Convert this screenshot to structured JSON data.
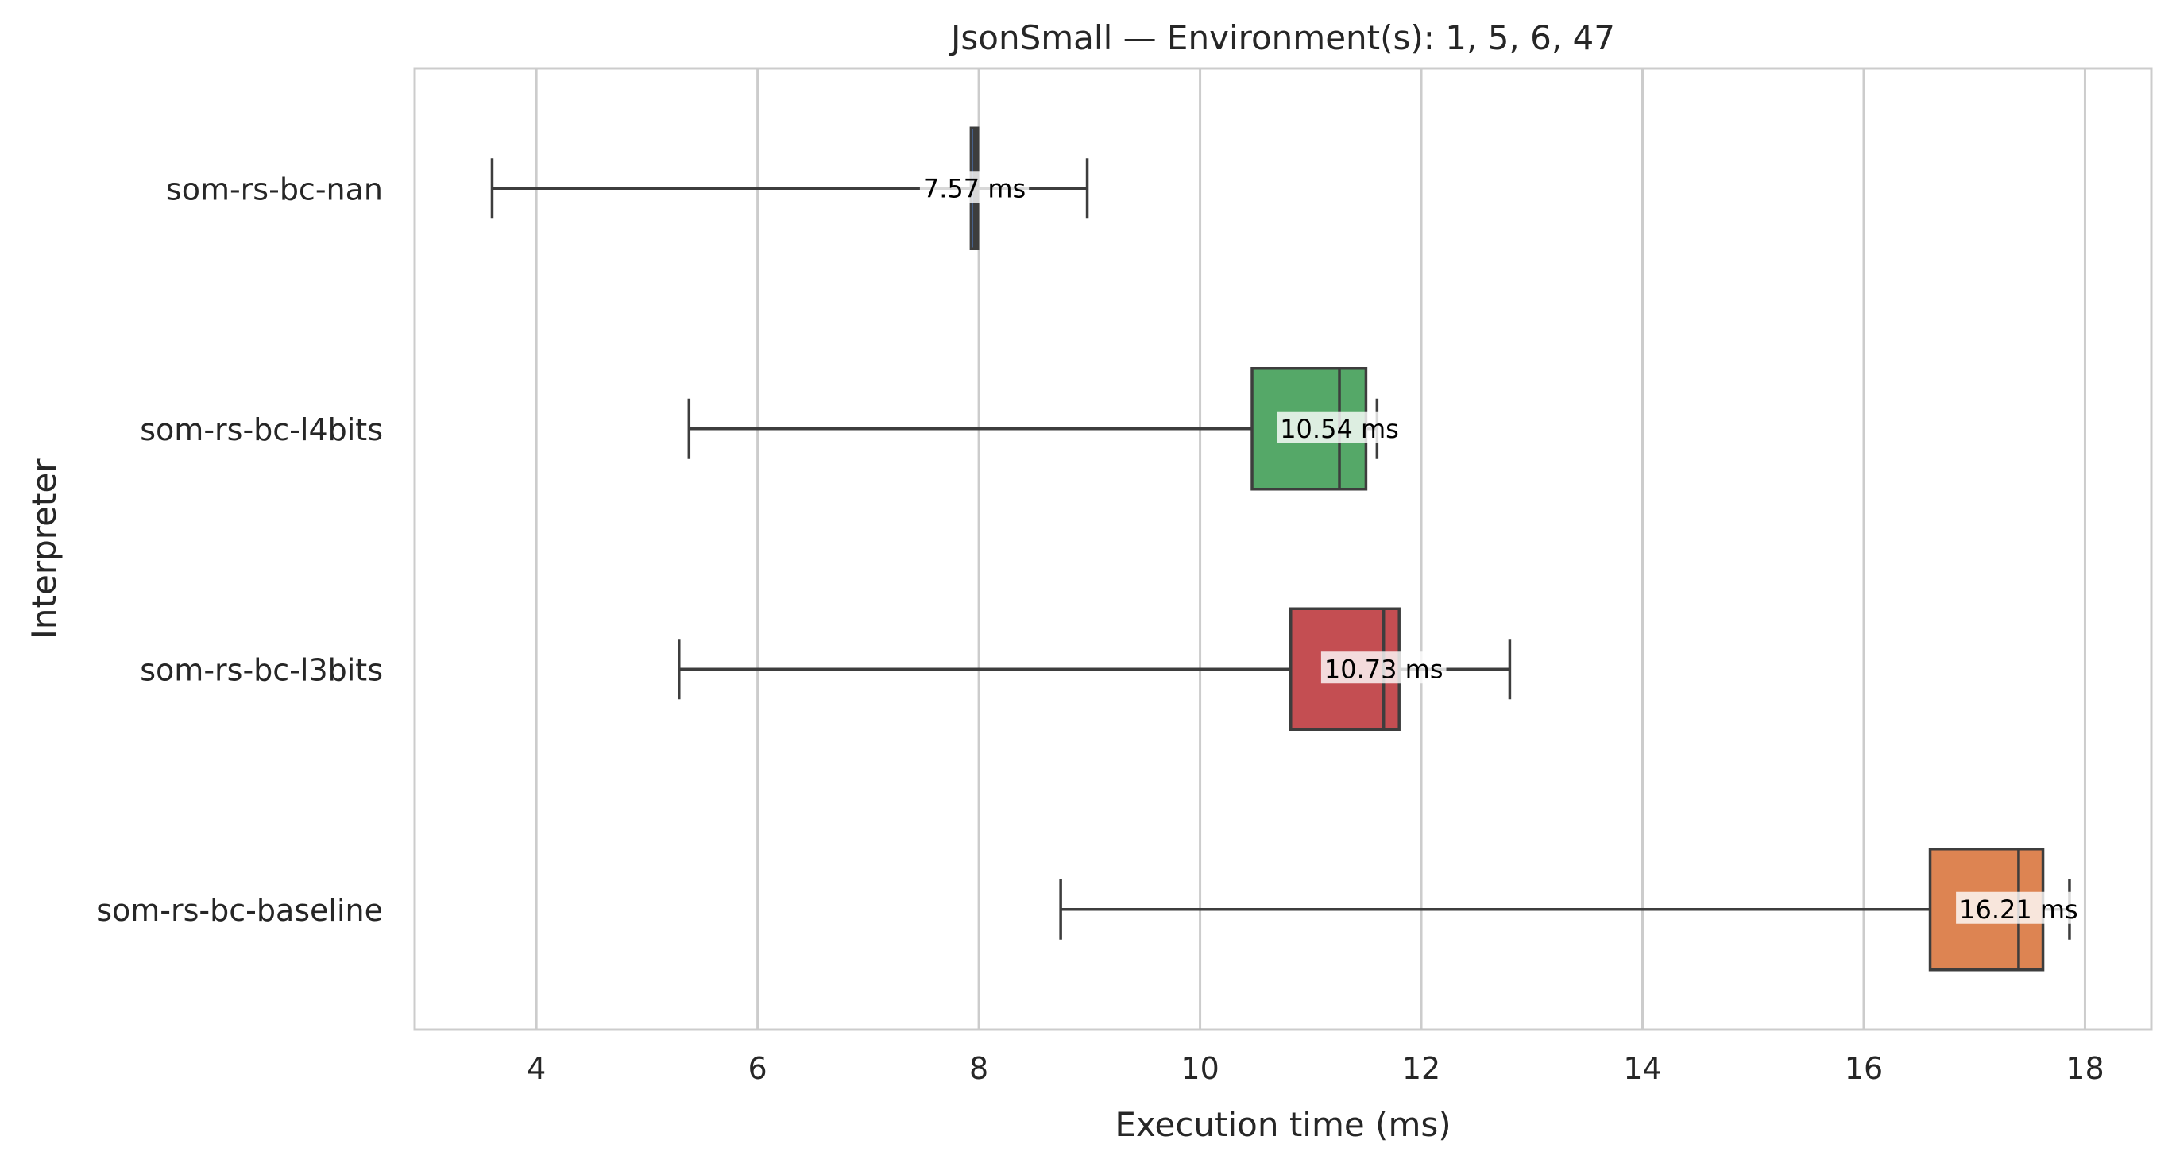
{
  "chart_data": {
    "type": "box",
    "orientation": "horizontal",
    "title": "JsonSmall — Environment(s): 1, 5, 6, 47",
    "xlabel": "Execution time (ms)",
    "ylabel": "Interpreter",
    "xlim": [
      2.9,
      18.6
    ],
    "xticks": [
      4,
      6,
      8,
      10,
      12,
      14,
      16,
      18
    ],
    "grid": "vertical",
    "series": [
      {
        "name": "som-rs-bc-nan",
        "color": "#4c72b0",
        "whisker_low": 3.6,
        "q1": 7.93,
        "median": 7.96,
        "q3": 7.99,
        "whisker_high": 8.98,
        "label": "7.57 ms"
      },
      {
        "name": "som-rs-bc-l4bits",
        "color": "#55a868",
        "whisker_low": 5.38,
        "q1": 10.47,
        "median": 11.26,
        "q3": 11.5,
        "whisker_high": 11.6,
        "label": "10.54 ms"
      },
      {
        "name": "som-rs-bc-l3bits",
        "color": "#c44e52",
        "whisker_low": 5.29,
        "q1": 10.82,
        "median": 11.66,
        "q3": 11.8,
        "whisker_high": 12.8,
        "label": "10.73 ms"
      },
      {
        "name": "som-rs-bc-baseline",
        "color": "#dd8452",
        "whisker_low": 8.74,
        "q1": 16.6,
        "median": 17.4,
        "q3": 17.62,
        "whisker_high": 17.86,
        "label": "16.21 ms"
      }
    ]
  }
}
